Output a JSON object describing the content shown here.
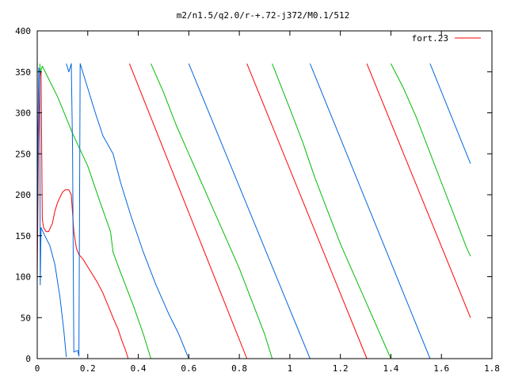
{
  "chart_data": {
    "type": "line",
    "title": "m2/n1.5/q2.0/r-+.72-j372/M0.1/512",
    "xlabel": "",
    "ylabel": "",
    "xlim": [
      0,
      1.8
    ],
    "ylim": [
      0,
      400
    ],
    "xticks": [
      {
        "value": 0,
        "label": "0"
      },
      {
        "value": 0.2,
        "label": "0.2"
      },
      {
        "value": 0.4,
        "label": "0.4"
      },
      {
        "value": 0.6,
        "label": "0.6"
      },
      {
        "value": 0.8,
        "label": "0.8"
      },
      {
        "value": 1.0,
        "label": "1"
      },
      {
        "value": 1.2,
        "label": "1.2"
      },
      {
        "value": 1.4,
        "label": "1.4"
      },
      {
        "value": 1.6,
        "label": "1.6"
      },
      {
        "value": 1.8,
        "label": "1.8"
      }
    ],
    "yticks": [
      {
        "value": 0,
        "label": "0"
      },
      {
        "value": 50,
        "label": "50"
      },
      {
        "value": 100,
        "label": "100"
      },
      {
        "value": 150,
        "label": "150"
      },
      {
        "value": 200,
        "label": "200"
      },
      {
        "value": 250,
        "label": "250"
      },
      {
        "value": 300,
        "label": "300"
      },
      {
        "value": 350,
        "label": "350"
      },
      {
        "value": 400,
        "label": "400"
      }
    ],
    "grid": false,
    "legend_position": "top-right",
    "legend": [
      {
        "label": "fort.23",
        "color": "#ff0000"
      }
    ],
    "series": [
      {
        "color": "#ff0000",
        "points": [
          [
            0.0,
            95
          ],
          [
            0.005,
            260
          ],
          [
            0.01,
            345
          ],
          [
            0.015,
            350
          ],
          [
            0.02,
            170
          ],
          [
            0.025,
            160
          ],
          [
            0.035,
            155
          ],
          [
            0.045,
            155
          ],
          [
            0.06,
            165
          ],
          [
            0.07,
            180
          ],
          [
            0.08,
            190
          ],
          [
            0.09,
            197
          ],
          [
            0.1,
            203
          ],
          [
            0.11,
            206
          ],
          [
            0.125,
            206
          ],
          [
            0.135,
            200
          ],
          [
            0.145,
            155
          ],
          [
            0.155,
            135
          ],
          [
            0.165,
            127
          ],
          [
            0.18,
            122
          ],
          [
            0.2,
            112
          ],
          [
            0.22,
            102
          ],
          [
            0.24,
            92
          ],
          [
            0.26,
            80
          ],
          [
            0.28,
            65
          ],
          [
            0.3,
            50
          ],
          [
            0.32,
            36
          ],
          [
            0.335,
            22
          ],
          [
            0.35,
            10
          ],
          [
            0.36,
            0
          ],
          null,
          [
            0.365,
            360
          ],
          [
            0.83,
            0
          ],
          null,
          [
            0.83,
            360
          ],
          [
            1.305,
            0
          ],
          null,
          [
            1.305,
            360
          ],
          [
            1.715,
            50
          ]
        ]
      },
      {
        "color": "#00bb00",
        "points": [
          [
            0.01,
            360
          ],
          [
            0.013,
            350
          ],
          [
            0.02,
            357
          ],
          [
            0.08,
            320
          ],
          [
            0.14,
            275
          ],
          [
            0.2,
            235
          ],
          [
            0.25,
            190
          ],
          [
            0.29,
            155
          ],
          [
            0.3,
            130
          ],
          [
            0.33,
            105
          ],
          [
            0.38,
            65
          ],
          [
            0.42,
            30
          ],
          [
            0.45,
            0
          ],
          null,
          [
            0.45,
            360
          ],
          [
            0.5,
            325
          ],
          [
            0.55,
            285
          ],
          [
            0.6,
            250
          ],
          [
            0.65,
            215
          ],
          [
            0.7,
            180
          ],
          [
            0.75,
            145
          ],
          [
            0.8,
            110
          ],
          [
            0.85,
            70
          ],
          [
            0.9,
            30
          ],
          [
            0.93,
            0
          ],
          null,
          [
            0.93,
            360
          ],
          [
            1.0,
            305
          ],
          [
            1.05,
            265
          ],
          [
            1.1,
            220
          ],
          [
            1.15,
            180
          ],
          [
            1.2,
            140
          ],
          [
            1.25,
            105
          ],
          [
            1.3,
            70
          ],
          [
            1.35,
            35
          ],
          [
            1.4,
            0
          ],
          null,
          [
            1.4,
            360
          ],
          [
            1.45,
            330
          ],
          [
            1.5,
            295
          ],
          [
            1.55,
            255
          ],
          [
            1.6,
            215
          ],
          [
            1.65,
            175
          ],
          [
            1.7,
            135
          ],
          [
            1.715,
            125
          ]
        ]
      },
      {
        "color": "#0066dd",
        "points": [
          [
            0.0,
            130
          ],
          [
            0.003,
            280
          ],
          [
            0.006,
            355
          ],
          [
            0.01,
            350
          ],
          [
            0.012,
            90
          ],
          [
            0.015,
            160
          ],
          [
            0.03,
            150
          ],
          [
            0.05,
            138
          ],
          [
            0.07,
            115
          ],
          [
            0.09,
            75
          ],
          [
            0.105,
            35
          ],
          [
            0.115,
            2
          ],
          null,
          [
            0.115,
            360
          ],
          [
            0.125,
            350
          ],
          [
            0.135,
            360
          ],
          [
            0.14,
            255
          ],
          [
            0.145,
            8
          ],
          [
            0.16,
            10
          ],
          [
            0.165,
            3
          ],
          [
            0.17,
            360
          ],
          [
            0.2,
            330
          ],
          [
            0.23,
            300
          ],
          [
            0.26,
            272
          ],
          [
            0.3,
            250
          ],
          [
            0.33,
            215
          ],
          [
            0.37,
            175
          ],
          [
            0.42,
            130
          ],
          [
            0.47,
            90
          ],
          [
            0.52,
            55
          ],
          [
            0.56,
            30
          ],
          [
            0.6,
            0
          ],
          null,
          [
            0.6,
            360
          ],
          [
            1.08,
            0
          ],
          null,
          [
            1.08,
            360
          ],
          [
            1.555,
            0
          ],
          null,
          [
            1.555,
            360
          ],
          [
            1.715,
            238
          ]
        ]
      }
    ]
  }
}
